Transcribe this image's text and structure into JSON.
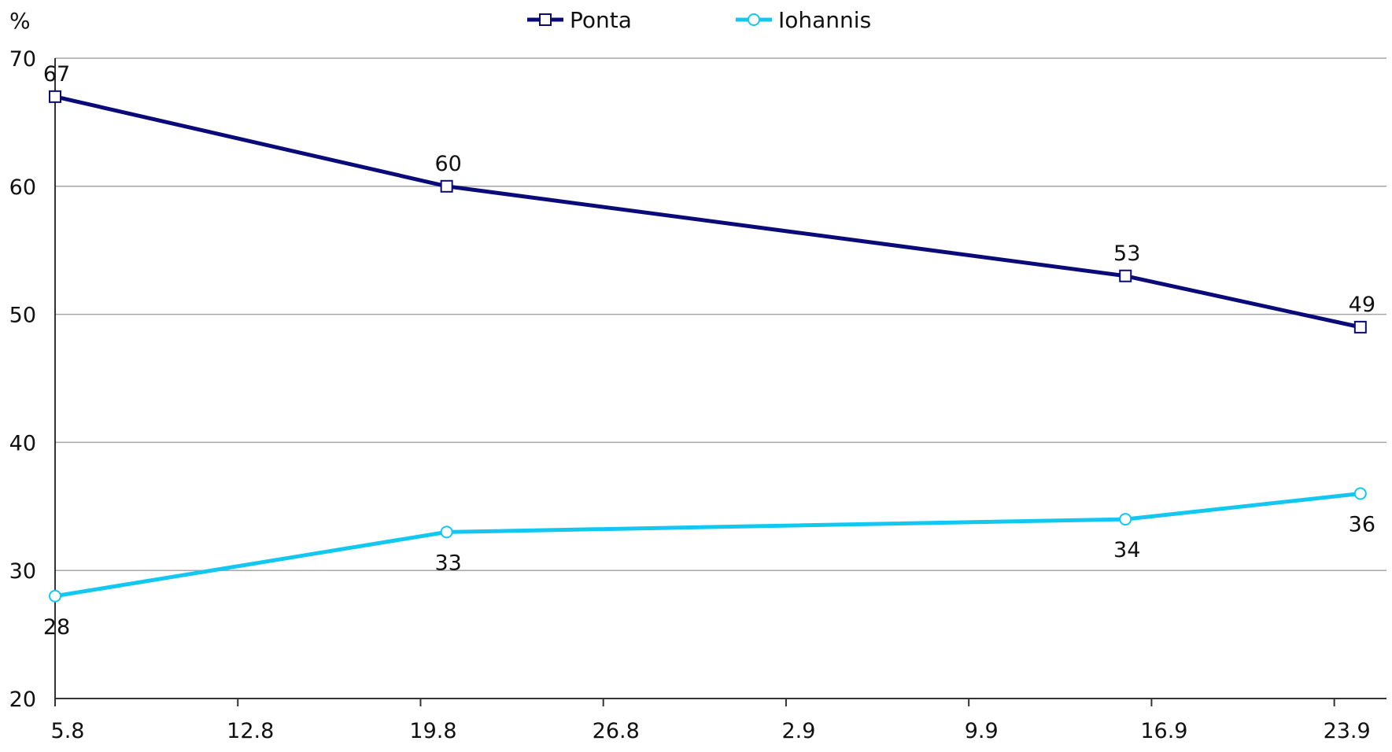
{
  "chart_data": {
    "type": "line",
    "title": "",
    "xlabel": "",
    "ylabel": "%",
    "ylim": [
      20,
      70
    ],
    "yticks": [
      20,
      30,
      40,
      50,
      60,
      70
    ],
    "grid": "horizontal",
    "legend_position": "top-center",
    "x_tick_labels": [
      "5.8",
      "12.8",
      "19.8",
      "26.8",
      "2.9",
      "9.9",
      "16.9",
      "23.9"
    ],
    "x_tick_positions_days": [
      0,
      7,
      14,
      21,
      28,
      35,
      42,
      49
    ],
    "x_axis_days_range": [
      0,
      51
    ],
    "series": [
      {
        "name": "Ponta",
        "color": "#0a0a78",
        "marker": "square",
        "label_position": "above",
        "points": [
          {
            "x": "5.8",
            "y": 67
          },
          {
            "x": "20.8",
            "y": 60
          },
          {
            "x": "15.9",
            "y": 53
          },
          {
            "x": "24.9",
            "y": 49
          }
        ]
      },
      {
        "name": "Iohannis",
        "color": "#12c8f0",
        "marker": "circle",
        "label_position": "below",
        "points": [
          {
            "x": "5.8",
            "y": 28
          },
          {
            "x": "20.8",
            "y": 33
          },
          {
            "x": "15.9",
            "y": 34
          },
          {
            "x": "24.9",
            "y": 36
          }
        ]
      }
    ]
  }
}
